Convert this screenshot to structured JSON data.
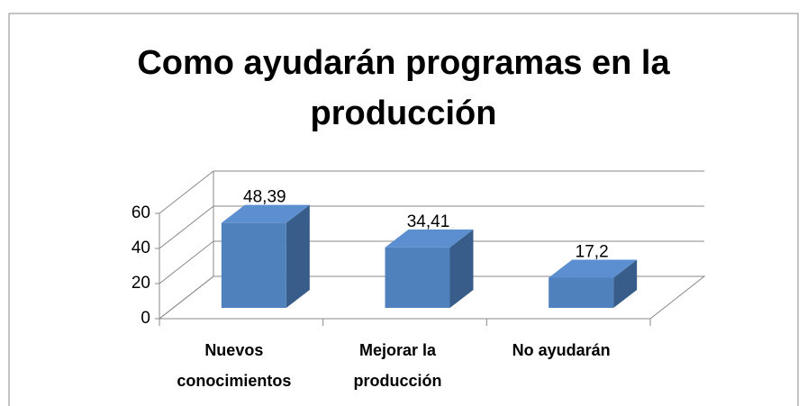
{
  "chart_data": {
    "type": "bar3d",
    "title": "Como ayudarán programas en la producción",
    "categories": [
      "Nuevos conocimientos",
      "Mejorar la producción",
      "No ayudarán"
    ],
    "values": [
      48.39,
      34.41,
      17.2
    ],
    "value_labels": [
      "48,39",
      "34,41",
      "17,2"
    ],
    "color": "#4f81bd",
    "ylim": [
      0,
      60
    ],
    "yticks": [
      0,
      20,
      40,
      60
    ],
    "grid": true
  }
}
